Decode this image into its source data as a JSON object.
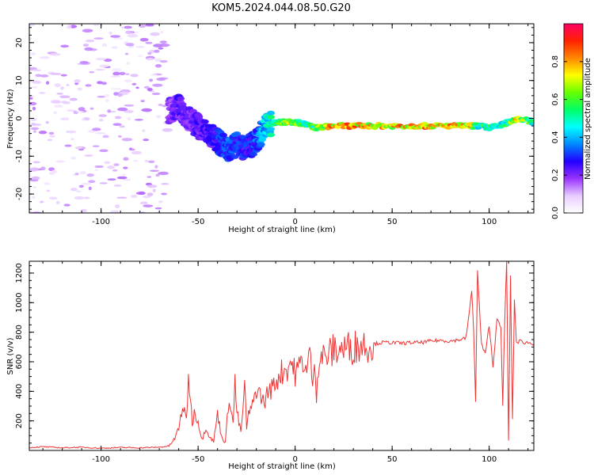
{
  "title": "KOM5.2024.044.08.50.G20",
  "chart_data": [
    {
      "type": "heatmap",
      "xlabel": "Height of straight line (km)",
      "ylabel": "Frequency (Hz)",
      "xlim": [
        -137,
        123
      ],
      "ylim": [
        -25,
        25
      ],
      "x_ticks": [
        -100,
        -50,
        0,
        50,
        100
      ],
      "y_ticks": [
        -20,
        -10,
        0,
        10,
        20
      ],
      "x_tick_labels": [
        "-100",
        "-50",
        "0",
        "50",
        "100"
      ],
      "y_tick_labels": [
        "-20",
        "-10",
        "0",
        "10",
        "20"
      ],
      "grid": false,
      "colorbar": {
        "label": "Normalized spectral amplitude",
        "range": [
          0,
          1
        ],
        "ticks": [
          0.0,
          0.2,
          0.4,
          0.6,
          0.8
        ],
        "tick_labels": [
          "0.0",
          "0.2",
          "0.4",
          "0.6",
          "0.8"
        ],
        "colormap": [
          "#ffffff",
          "#e8ccff",
          "#9933ff",
          "#2200ff",
          "#0088ff",
          "#00ffff",
          "#00ff66",
          "#66ff00",
          "#ffff00",
          "#ff8800",
          "#ff2200",
          "#ff0066"
        ]
      },
      "ridge": [
        {
          "x": -137,
          "f": null,
          "amp": 0.05
        },
        {
          "x": -65,
          "f": 2,
          "amp": 0.2
        },
        {
          "x": -60,
          "f": 3,
          "amp": 0.25
        },
        {
          "x": -55,
          "f": 0,
          "amp": 0.22
        },
        {
          "x": -50,
          "f": -2,
          "amp": 0.25
        },
        {
          "x": -45,
          "f": -4,
          "amp": 0.25
        },
        {
          "x": -40,
          "f": -6,
          "amp": 0.3
        },
        {
          "x": -35,
          "f": -8,
          "amp": 0.35
        },
        {
          "x": -30,
          "f": -7,
          "amp": 0.32
        },
        {
          "x": -25,
          "f": -8,
          "amp": 0.3
        },
        {
          "x": -20,
          "f": -6,
          "amp": 0.35
        },
        {
          "x": -15,
          "f": -2,
          "amp": 0.45
        },
        {
          "x": -10,
          "f": -1,
          "amp": 0.6
        },
        {
          "x": -5,
          "f": -1,
          "amp": 0.7
        },
        {
          "x": 0,
          "f": -1,
          "amp": 0.7
        },
        {
          "x": 5,
          "f": -1.5,
          "amp": 0.55
        },
        {
          "x": 10,
          "f": -2.5,
          "amp": 0.6
        },
        {
          "x": 20,
          "f": -2,
          "amp": 0.85
        },
        {
          "x": 30,
          "f": -2,
          "amp": 0.85
        },
        {
          "x": 40,
          "f": -2,
          "amp": 0.82
        },
        {
          "x": 50,
          "f": -2,
          "amp": 0.82
        },
        {
          "x": 60,
          "f": -2,
          "amp": 0.82
        },
        {
          "x": 70,
          "f": -2,
          "amp": 0.85
        },
        {
          "x": 80,
          "f": -2,
          "amp": 0.85
        },
        {
          "x": 90,
          "f": -2,
          "amp": 0.8
        },
        {
          "x": 95,
          "f": -2,
          "amp": 0.55
        },
        {
          "x": 100,
          "f": -2.5,
          "amp": 0.6
        },
        {
          "x": 105,
          "f": -2,
          "amp": 0.5
        },
        {
          "x": 110,
          "f": -1,
          "amp": 0.6
        },
        {
          "x": 115,
          "f": 0,
          "amp": 0.8
        },
        {
          "x": 123,
          "f": -1,
          "amp": 0.55
        }
      ]
    },
    {
      "type": "line",
      "xlabel": "Height of straight line (km)",
      "ylabel": "SNR (v/v)",
      "xlim": [
        -137,
        123
      ],
      "ylim": [
        0,
        1280
      ],
      "x_ticks": [
        -100,
        -50,
        0,
        50,
        100
      ],
      "y_ticks": [
        200,
        400,
        600,
        800,
        1000,
        1200
      ],
      "x_tick_labels": [
        "-100",
        "-50",
        "0",
        "50",
        "100"
      ],
      "y_tick_labels": [
        "200",
        "400",
        "600",
        "800",
        "1000",
        "1200"
      ],
      "grid": false,
      "color": "#ee3333",
      "series": [
        {
          "x": [
            -137,
            -130,
            -120,
            -110,
            -100,
            -90,
            -80,
            -70,
            -65,
            -62,
            -60,
            -58,
            -56,
            -55,
            -54,
            -53,
            -52,
            -50,
            -48,
            -46,
            -44,
            -42,
            -40,
            -38,
            -36,
            -34,
            -32,
            -31,
            -30,
            -28,
            -26,
            -25,
            -24,
            -22,
            -20,
            -18,
            -16,
            -14,
            -12,
            -10,
            -8,
            -6,
            -4,
            -2,
            0,
            2,
            4,
            6,
            8,
            9,
            10,
            11,
            12,
            14,
            16,
            18,
            20,
            25,
            30,
            35,
            40,
            45,
            50,
            55,
            60,
            65,
            70,
            75,
            80,
            85,
            88,
            90,
            91,
            92,
            93,
            94,
            96,
            98,
            100,
            102,
            104,
            106,
            107,
            108,
            109,
            110,
            111,
            112,
            113,
            114,
            116,
            118,
            120,
            123
          ],
          "y": [
            20,
            25,
            18,
            22,
            15,
            20,
            18,
            22,
            30,
            80,
            150,
            300,
            200,
            520,
            350,
            180,
            260,
            200,
            70,
            160,
            90,
            60,
            250,
            100,
            50,
            380,
            180,
            460,
            260,
            120,
            420,
            160,
            240,
            300,
            420,
            380,
            320,
            400,
            420,
            460,
            520,
            540,
            560,
            600,
            520,
            560,
            620,
            520,
            690,
            380,
            700,
            360,
            600,
            640,
            630,
            660,
            680,
            690,
            700,
            720,
            720,
            730,
            730,
            725,
            730,
            730,
            740,
            745,
            740,
            750,
            760,
            960,
            1080,
            820,
            330,
            1210,
            720,
            650,
            850,
            560,
            900,
            820,
            300,
            890,
            1270,
            70,
            1180,
            200,
            1020,
            730,
            740,
            730,
            730,
            720
          ]
        }
      ]
    }
  ]
}
